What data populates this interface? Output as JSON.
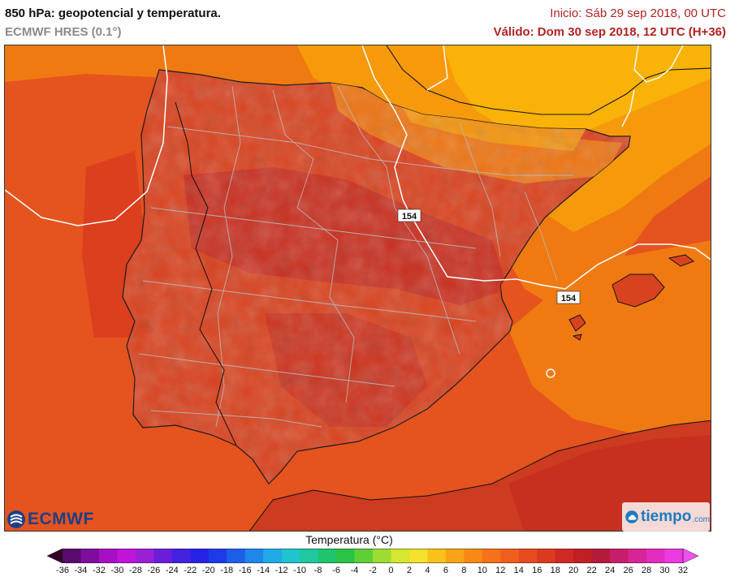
{
  "header": {
    "title": "850 hPa: geopotencial y temperatura.",
    "model": "ECMWF HRES (0.1°)",
    "init": "Inicio: Sáb 29 sep 2018, 00 UTC",
    "valid": "Válido: Dom 30 sep 2018, 12 UTC (H+36)"
  },
  "map": {
    "contour_labels": [
      "154",
      "154"
    ],
    "colors": {
      "sea": "#e5531f",
      "land": "#d9421e",
      "hot": "#c42c20",
      "warm_orange": "#f07a12",
      "amber": "#f69a0c",
      "yellow_orange": "#f9b208",
      "coast": "#111111",
      "borders": "#b9b9b9",
      "isohypse": "#ffffff"
    }
  },
  "logos": {
    "ecmwf": "ECMWF",
    "tiempo": "tiempo",
    "tiempo_domain": ".com"
  },
  "legend": {
    "title": "Temperatura (°C)",
    "ticks": [
      "-36",
      "-34",
      "-32",
      "-30",
      "-28",
      "-26",
      "-24",
      "-22",
      "-20",
      "-18",
      "-16",
      "-14",
      "-12",
      "-10",
      "-8",
      "-6",
      "-4",
      "-2",
      "0",
      "2",
      "4",
      "6",
      "8",
      "10",
      "12",
      "14",
      "16",
      "18",
      "20",
      "22",
      "24",
      "26",
      "28",
      "30",
      "32"
    ],
    "colors": [
      "#340424",
      "#5a0a6e",
      "#7d0d9c",
      "#a80fc4",
      "#c014d6",
      "#9c1fd6",
      "#6a1ed9",
      "#4420e0",
      "#2622e6",
      "#1d3ae8",
      "#1f5ee8",
      "#1f86ea",
      "#1fa9e6",
      "#1fc4cf",
      "#1fc89e",
      "#1ec56e",
      "#2bc345",
      "#5fce35",
      "#9ddc33",
      "#d6e52f",
      "#f3e12a",
      "#f9c21a",
      "#f8a414",
      "#f78a14",
      "#f57218",
      "#f05e1c",
      "#e74b1f",
      "#dc3a20",
      "#ce2a22",
      "#c01f24",
      "#b41a3a",
      "#c81e6a",
      "#d82497",
      "#e22cc0",
      "#ea3ae0",
      "#f050f0"
    ]
  }
}
